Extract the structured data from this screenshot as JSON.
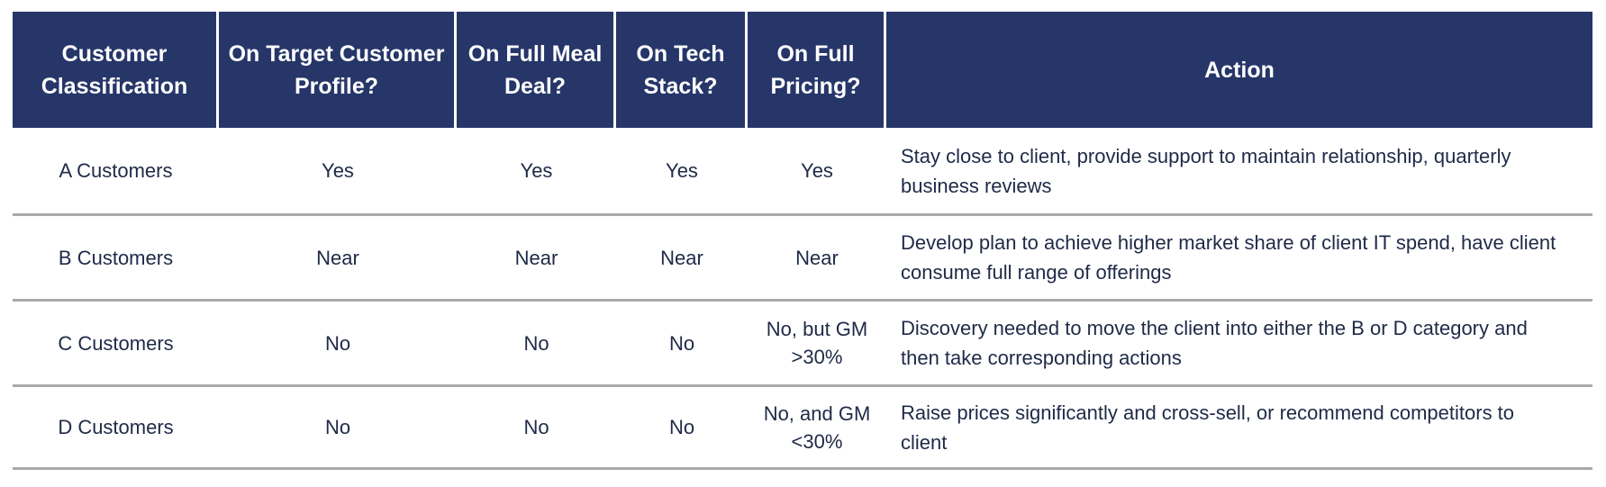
{
  "table": {
    "colors": {
      "header_bg": "#263669",
      "header_text": "#FFFFFF",
      "body_text": "#1F2A47",
      "row_divider": "#A9A9A9"
    },
    "columns": [
      {
        "label": "Customer Classification"
      },
      {
        "label": "On Target Customer Profile?"
      },
      {
        "label": "On Full Meal Deal?"
      },
      {
        "label": "On Tech Stack?"
      },
      {
        "label": "On Full Pricing?"
      },
      {
        "label": "Action"
      }
    ],
    "rows": [
      {
        "classification": "A Customers",
        "on_target_customer_profile": "Yes",
        "on_full_meal_deal": "Yes",
        "on_tech_stack": "Yes",
        "on_full_pricing": "Yes",
        "action": "Stay close to client, provide support to maintain relationship, quarterly business reviews"
      },
      {
        "classification": "B Customers",
        "on_target_customer_profile": "Near",
        "on_full_meal_deal": "Near",
        "on_tech_stack": "Near",
        "on_full_pricing": "Near",
        "action": "Develop plan to achieve higher market share of client IT spend, have client consume full range of offerings"
      },
      {
        "classification": "C Customers",
        "on_target_customer_profile": "No",
        "on_full_meal_deal": "No",
        "on_tech_stack": "No",
        "on_full_pricing": "No, but GM >30%",
        "action": "Discovery needed to move the client into either the B or D category and then take corresponding actions"
      },
      {
        "classification": "D Customers",
        "on_target_customer_profile": "No",
        "on_full_meal_deal": "No",
        "on_tech_stack": "No",
        "on_full_pricing": "No, and GM <30%",
        "action": "Raise prices significantly and cross-sell, or recommend competitors to client"
      }
    ]
  }
}
